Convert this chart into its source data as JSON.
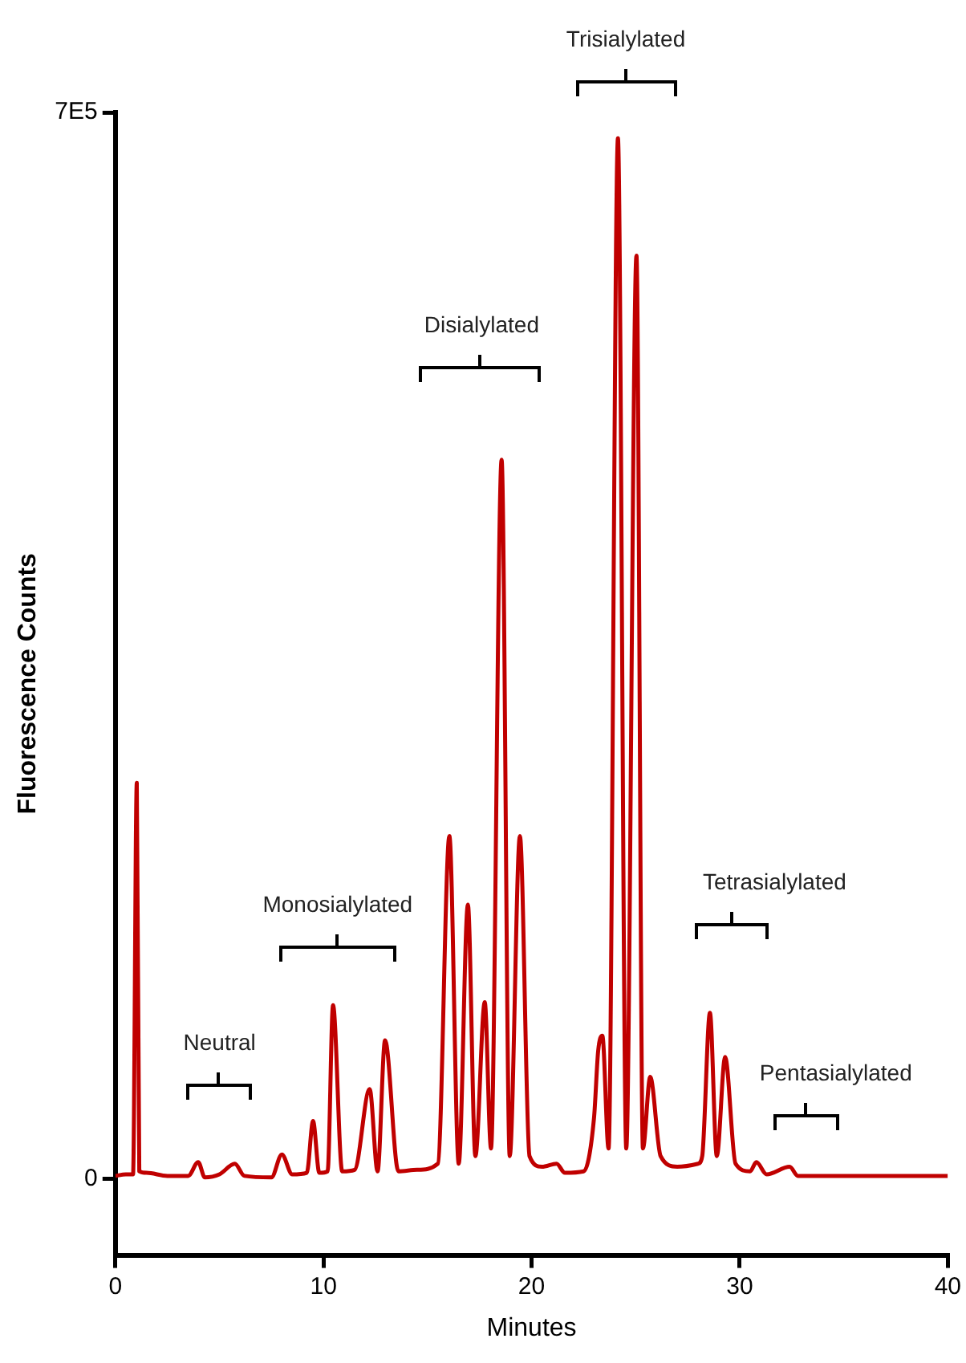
{
  "chart_data": {
    "type": "line",
    "xlabel": "Minutes",
    "ylabel": "Fluorescence Counts",
    "xlim": [
      0,
      40
    ],
    "xticks": [
      0,
      10,
      20,
      30,
      40
    ],
    "ylim": [
      -50000,
      700000
    ],
    "yticks": [
      0,
      {
        "value": 700000,
        "label": "7E5"
      }
    ],
    "grid": false,
    "legend": false,
    "marker": "none",
    "line_style": "solid",
    "series": [
      {
        "color": "#c00000",
        "x": [
          0,
          0.5,
          0.85,
          1.03,
          1.15,
          1.5,
          2.5,
          3.5,
          3.98,
          4.3,
          5,
          5.74,
          6.2,
          7.5,
          8.0,
          8.5,
          9.2,
          9.5,
          9.8,
          10.2,
          10.46,
          10.9,
          11.5,
          12.22,
          12.6,
          12.96,
          13.6,
          14.5,
          15.5,
          16.05,
          16.5,
          16.94,
          17.3,
          17.75,
          18.05,
          18.56,
          18.95,
          19.44,
          19.9,
          20.5,
          21.2,
          21.6,
          22.5,
          23.0,
          23.2,
          23.4,
          23.7,
          24.15,
          24.55,
          25.04,
          25.35,
          25.7,
          26.2,
          27.0,
          28.0,
          28.2,
          28.57,
          28.9,
          29.3,
          29.8,
          30.5,
          30.8,
          31.3,
          32.4,
          32.8,
          35,
          40
        ],
        "values": [
          2000,
          3000,
          3000,
          260000,
          5000,
          4000,
          2000,
          2000,
          11000,
          1000,
          3000,
          10000,
          2000,
          1000,
          16000,
          3000,
          4000,
          38000,
          4000,
          5000,
          114000,
          5000,
          6000,
          59000,
          5000,
          91000,
          5000,
          6000,
          10000,
          225000,
          10000,
          180000,
          15000,
          116000,
          20000,
          472000,
          15000,
          225000,
          15000,
          8000,
          10000,
          4000,
          5000,
          40000,
          84000,
          94000,
          20000,
          683000,
          20000,
          606000,
          20000,
          67000,
          15000,
          8000,
          10000,
          15000,
          109000,
          15000,
          80000,
          10000,
          5000,
          11000,
          3000,
          8000,
          2000,
          2000,
          2000
        ]
      }
    ],
    "annotations": [
      "Neutral",
      "Monosialylated",
      "Disialylated",
      "Trisialylated",
      "Tetrasialylated",
      "Pentasialylated"
    ]
  }
}
